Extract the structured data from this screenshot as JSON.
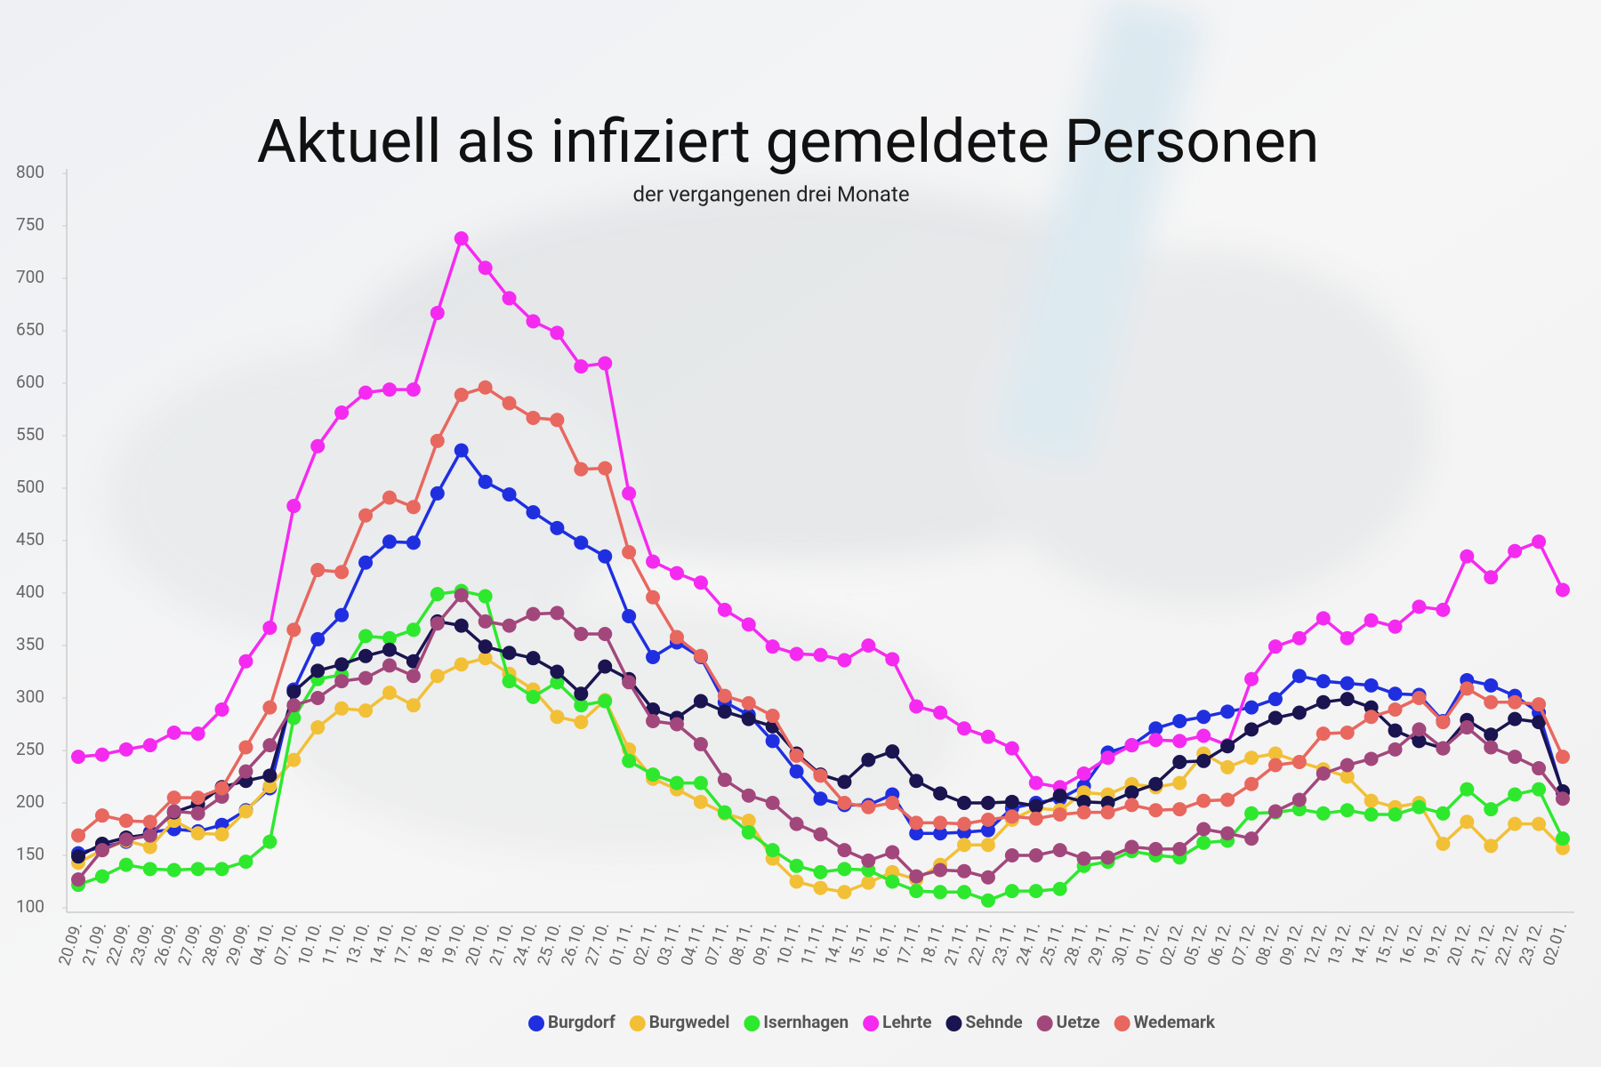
{
  "chart_data": {
    "type": "line",
    "title": "Aktuell als infiziert gemeldete Personen",
    "subtitle": "der vergangenen drei Monate",
    "categories": [
      "20.09.",
      "21.09.",
      "22.09.",
      "23.09.",
      "26.09.",
      "27.09.",
      "28.09.",
      "29.09.",
      "04.10.",
      "07.10.",
      "10.10.",
      "11.10.",
      "13.10.",
      "14.10.",
      "17.10.",
      "18.10.",
      "19.10.",
      "20.10.",
      "21.10.",
      "24.10.",
      "25.10.",
      "26.10.",
      "27.10.",
      "01.11.",
      "02.11.",
      "03.11.",
      "04.11.",
      "07.11.",
      "08.11.",
      "09.11.",
      "10.11.",
      "11.11.",
      "14.11.",
      "15.11.",
      "16.11.",
      "17.11.",
      "18.11.",
      "21.11.",
      "22.11.",
      "23.11.",
      "24.11.",
      "25.11.",
      "28.11.",
      "29.11.",
      "30.11.",
      "01.12.",
      "02.12.",
      "05.12.",
      "06.12.",
      "07.12.",
      "08.12.",
      "09.12.",
      "12.12.",
      "13.12.",
      "14.12.",
      "15.12.",
      "16.12.",
      "19.12.",
      "20.12.",
      "21.12.",
      "22.12.",
      "23.12.",
      "02.01."
    ],
    "series": [
      {
        "name": "Burgdorf",
        "color": "#1f2fe0",
        "values": [
          152,
          158,
          163,
          172,
          175,
          173,
          179,
          193,
          214,
          308,
          356,
          379,
          429,
          449,
          448,
          495,
          536,
          506,
          494,
          477,
          462,
          448,
          435,
          378,
          339,
          353,
          339,
          296,
          284,
          259,
          230,
          204,
          198,
          198,
          208,
          171,
          171,
          172,
          174,
          195,
          200,
          204,
          216,
          248,
          255,
          271,
          278,
          282,
          287,
          291,
          299,
          321,
          316,
          314,
          312,
          304,
          303,
          278,
          317,
          312,
          302,
          286,
          210
        ]
      },
      {
        "name": "Burgwedel",
        "color": "#f2c037",
        "values": [
          143,
          155,
          164,
          158,
          183,
          171,
          170,
          192,
          216,
          241,
          272,
          290,
          288,
          305,
          293,
          321,
          332,
          338,
          323,
          308,
          282,
          277,
          298,
          251,
          223,
          213,
          201,
          190,
          183,
          147,
          125,
          119,
          115,
          124,
          134,
          127,
          141,
          160,
          160,
          184,
          195,
          193,
          210,
          208,
          218,
          215,
          219,
          247,
          234,
          243,
          247,
          239,
          232,
          225,
          202,
          196,
          200,
          161,
          182,
          159,
          180,
          180,
          157
        ]
      },
      {
        "name": "Isernhagen",
        "color": "#2ee82e",
        "values": [
          122,
          130,
          141,
          137,
          136,
          137,
          137,
          144,
          163,
          281,
          318,
          322,
          359,
          357,
          365,
          399,
          402,
          397,
          316,
          301,
          315,
          293,
          297,
          240,
          227,
          219,
          219,
          191,
          172,
          155,
          140,
          134,
          137,
          136,
          125,
          116,
          115,
          115,
          107,
          116,
          116,
          118,
          140,
          144,
          154,
          150,
          148,
          162,
          164,
          190,
          191,
          194,
          190,
          193,
          189,
          189,
          196,
          190,
          213,
          194,
          208,
          213,
          166
        ]
      },
      {
        "name": "Lehrte",
        "color": "#f52af0",
        "values": [
          244,
          246,
          251,
          255,
          267,
          266,
          289,
          335,
          367,
          483,
          540,
          572,
          591,
          594,
          594,
          667,
          738,
          710,
          681,
          659,
          648,
          616,
          619,
          495,
          430,
          419,
          410,
          384,
          370,
          349,
          342,
          341,
          336,
          350,
          337,
          292,
          286,
          271,
          263,
          252,
          219,
          215,
          228,
          243,
          255,
          260,
          259,
          264,
          255,
          318,
          349,
          357,
          376,
          357,
          374,
          368,
          387,
          384,
          435,
          415,
          440,
          449,
          403
        ]
      },
      {
        "name": "Sehnde",
        "color": "#1a1450",
        "values": [
          149,
          161,
          167,
          170,
          191,
          199,
          215,
          221,
          226,
          306,
          326,
          332,
          340,
          346,
          335,
          373,
          369,
          349,
          343,
          338,
          325,
          304,
          330,
          318,
          289,
          281,
          297,
          287,
          280,
          273,
          247,
          227,
          220,
          241,
          249,
          221,
          209,
          200,
          200,
          201,
          197,
          207,
          201,
          200,
          210,
          218,
          239,
          240,
          254,
          270,
          281,
          286,
          296,
          299,
          291,
          269,
          259,
          252,
          279,
          265,
          280,
          277,
          211
        ]
      },
      {
        "name": "Uetze",
        "color": "#a2477c",
        "values": [
          127,
          155,
          165,
          169,
          192,
          190,
          206,
          230,
          255,
          293,
          300,
          316,
          319,
          331,
          321,
          371,
          398,
          373,
          369,
          380,
          381,
          361,
          361,
          315,
          278,
          275,
          256,
          222,
          207,
          200,
          180,
          170,
          155,
          145,
          153,
          130,
          136,
          135,
          129,
          150,
          150,
          155,
          147,
          148,
          158,
          156,
          156,
          175,
          171,
          166,
          192,
          203,
          228,
          236,
          242,
          251,
          270,
          252,
          272,
          253,
          244,
          233,
          204
        ]
      },
      {
        "name": "Wedemark",
        "color": "#e8675f",
        "values": [
          169,
          188,
          183,
          182,
          205,
          205,
          214,
          253,
          291,
          365,
          422,
          420,
          474,
          491,
          482,
          545,
          589,
          596,
          581,
          567,
          565,
          518,
          519,
          439,
          396,
          358,
          340,
          302,
          295,
          283,
          245,
          226,
          200,
          196,
          200,
          181,
          181,
          180,
          184,
          187,
          185,
          189,
          191,
          191,
          198,
          193,
          194,
          202,
          203,
          218,
          236,
          239,
          266,
          267,
          282,
          289,
          300,
          277,
          309,
          296,
          296,
          294,
          244
        ]
      }
    ],
    "ylim": [
      100,
      800
    ],
    "yticks": [
      100,
      150,
      200,
      250,
      300,
      350,
      400,
      450,
      500,
      550,
      600,
      650,
      700,
      750,
      800
    ],
    "grid": false
  }
}
